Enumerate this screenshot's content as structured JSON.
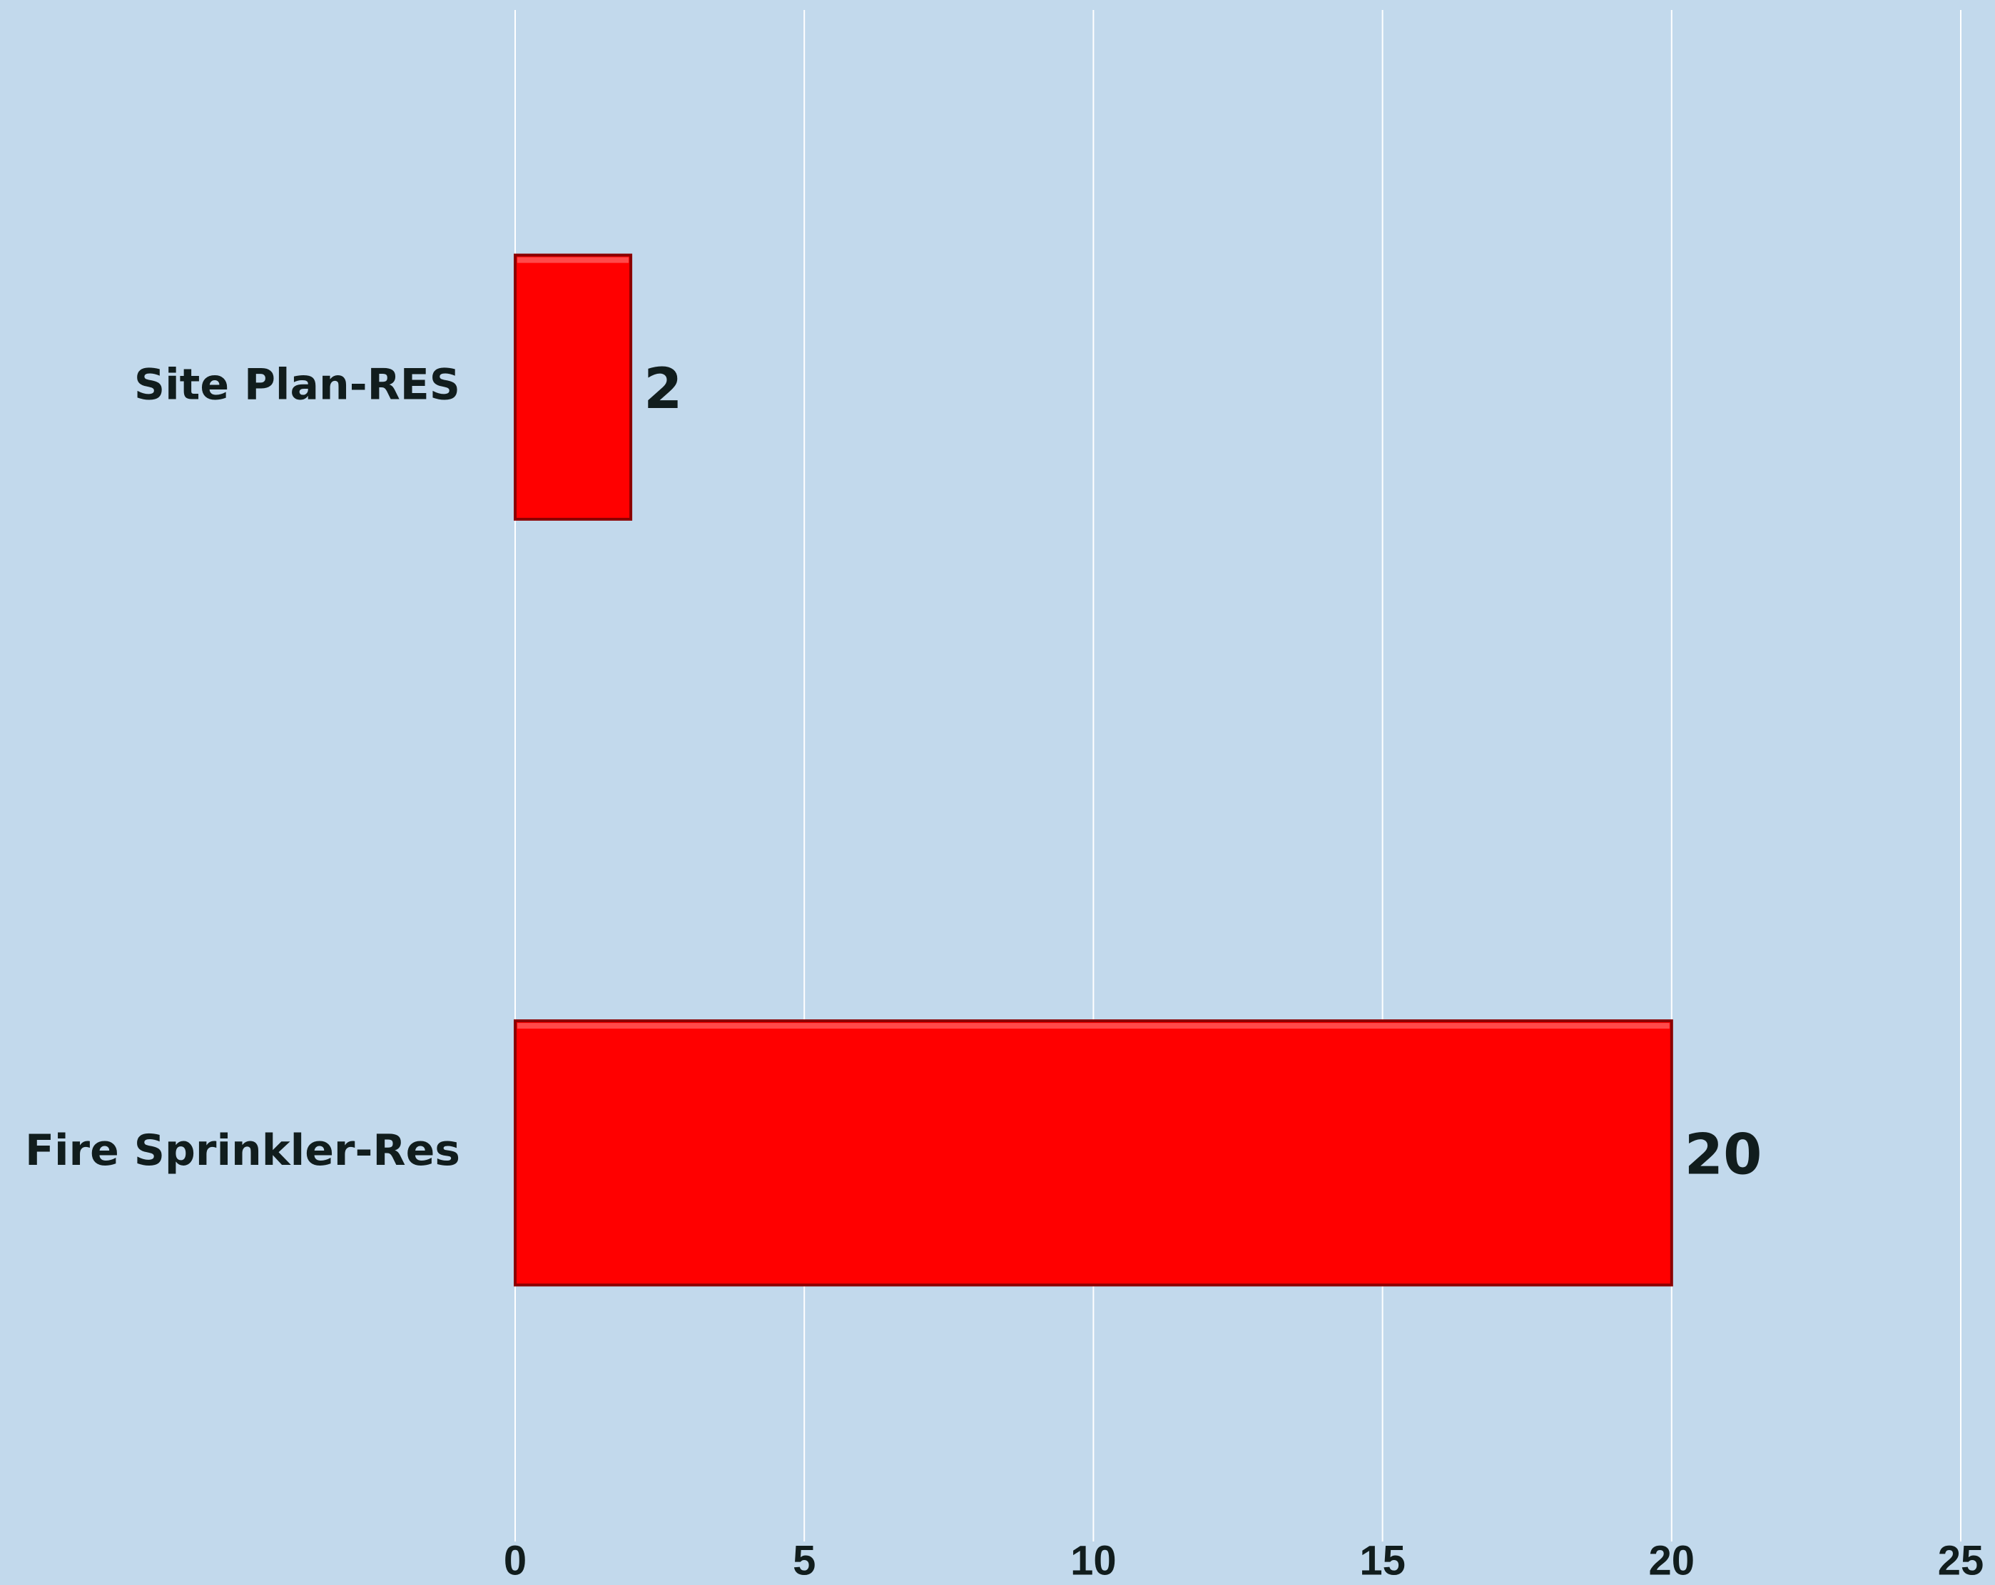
{
  "chart_data": {
    "type": "bar",
    "orientation": "horizontal",
    "categories": [
      "Site Plan-RES",
      "Fire Sprinkler-Res"
    ],
    "values": [
      2,
      20
    ],
    "color": "#ff0000",
    "xlim": [
      0,
      25
    ],
    "xticks": [
      0,
      5,
      10,
      15,
      20,
      25
    ],
    "grid": true
  }
}
